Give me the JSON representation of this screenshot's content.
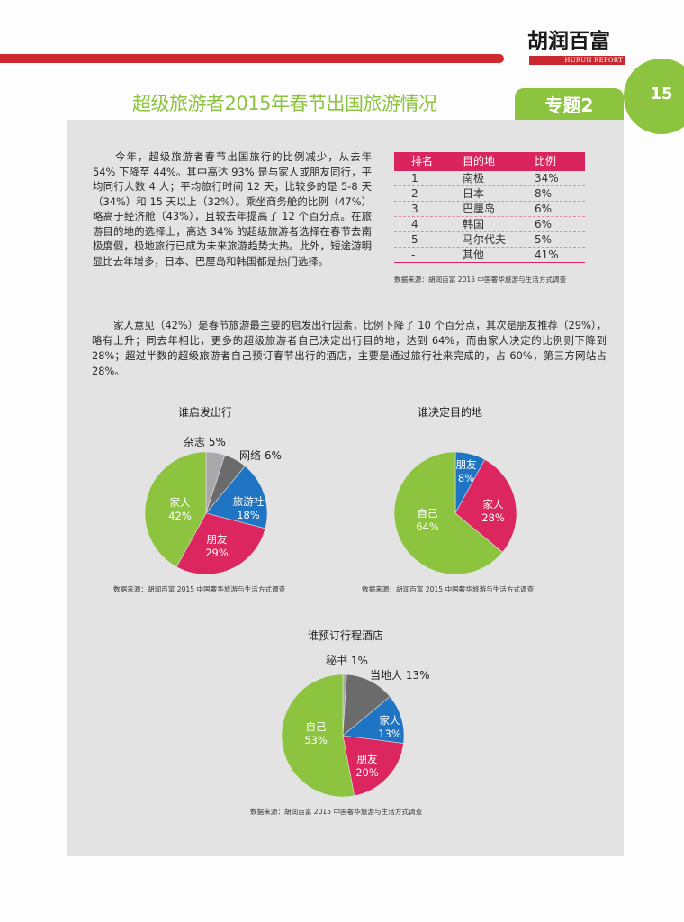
{
  "header": {
    "logo_cn": "胡润百富",
    "logo_en": "HURUN REPORT",
    "page_number": "15",
    "title": "超级旅游者2015年春节出国旅游情况",
    "topic_tab": "专题2"
  },
  "colors": {
    "brand_red": "#cc2a2e",
    "accent_green": "#8cc43f",
    "table_pink": "#d9245e",
    "panel_gray": "#e3e3e4",
    "pie_green": "#8cc43f",
    "pie_pink": "#db2660",
    "pie_blue": "#1f75c4",
    "pie_dark_gray": "#6b6b6b",
    "pie_light_gray": "#a9a9ab"
  },
  "intro_paragraph": "今年，超级旅游者春节出国旅行的比例减少，从去年 54% 下降至 44%。其中高达 93% 是与家人或朋友同行，平均同行人数 4 人；平均旅行时间 12 天，比较多的是 5-8 天（34%）和 15 天以上（32%）。乘坐商务舱的比例（47%）略高于经济舱（43%），且较去年提高了 12 个百分点。在旅游目的地的选择上，高达 34% 的超级旅游者选择在春节去南极度假，极地旅行已成为未来旅游趋势大热。此外，短途游明显比去年增多，日本、巴厘岛和韩国都是热门选择。",
  "second_paragraph": "家人意见（42%）是春节旅游最主要的启发出行因素，比例下降了 10 个百分点，其次是朋友推荐（29%），略有上升；同去年相比，更多的超级旅游者自己决定出行目的地，达到 64%，而由家人决定的比例则下降到 28%；超过半数的超级旅游者自己预订春节出行的酒店，主要是通过旅行社来完成的，占 60%，第三方网站占 28%。",
  "destination_table": {
    "headers": [
      "排名",
      "目的地",
      "比例"
    ],
    "rows": [
      {
        "rank": "1",
        "destination": "南极",
        "share": "34%"
      },
      {
        "rank": "2",
        "destination": "日本",
        "share": "8%"
      },
      {
        "rank": "3",
        "destination": "巴厘岛",
        "share": "6%"
      },
      {
        "rank": "4",
        "destination": "韩国",
        "share": "6%"
      },
      {
        "rank": "5",
        "destination": "马尔代夫",
        "share": "5%"
      },
      {
        "rank": "-",
        "destination": "其他",
        "share": "41%"
      }
    ],
    "source": "数据来源：胡润百富 2015 中国奢华旅游与生活方式调查"
  },
  "chart_data": [
    {
      "type": "pie",
      "title": "谁启发出行",
      "categories": [
        "杂志",
        "网络",
        "旅游社",
        "朋友",
        "家人"
      ],
      "values": [
        5,
        6,
        18,
        29,
        42
      ],
      "colors": [
        "#a9a9ab",
        "#6b6b6b",
        "#1f75c4",
        "#db2660",
        "#8cc43f"
      ],
      "labels": {
        "杂志": "杂志 5%",
        "网络": "网络 6%",
        "旅游社": [
          "旅游社",
          "18%"
        ],
        "朋友": [
          "朋友",
          "29%"
        ],
        "家人": [
          "家人",
          "42%"
        ]
      },
      "start_angle": "12 o'clock, clockwise",
      "source": "数据来源：胡润百富 2015 中国奢华旅游与生活方式调查"
    },
    {
      "type": "pie",
      "title": "谁决定目的地",
      "categories": [
        "朋友",
        "家人",
        "自己"
      ],
      "values": [
        8,
        28,
        64
      ],
      "colors": [
        "#1f75c4",
        "#db2660",
        "#8cc43f"
      ],
      "labels": {
        "朋友": [
          "朋友",
          "8%"
        ],
        "家人": [
          "家人",
          "28%"
        ],
        "自己": [
          "自己",
          "64%"
        ]
      },
      "start_angle": "12 o'clock, clockwise",
      "source": "数据来源：胡润百富 2015 中国奢华旅游与生活方式调查"
    },
    {
      "type": "pie",
      "title": "谁预订行程酒店",
      "categories": [
        "秘书",
        "当地人",
        "家人",
        "朋友",
        "自己"
      ],
      "values": [
        1,
        13,
        13,
        20,
        53
      ],
      "colors": [
        "#a9a9ab",
        "#6b6b6b",
        "#1f75c4",
        "#db2660",
        "#8cc43f"
      ],
      "labels": {
        "秘书": "秘书 1%",
        "当地人": "当地人 13%",
        "家人": [
          "家人",
          "13%"
        ],
        "朋友": [
          "朋友",
          "20%"
        ],
        "自己": [
          "自己",
          "53%"
        ]
      },
      "start_angle": "12 o'clock, clockwise",
      "source": "数据来源：胡润百富 2015 中国奢华旅游与生活方式调查"
    }
  ],
  "charts_text": {
    "c1": {
      "title": "谁启发出行",
      "magazine": "杂志 5%",
      "web": "网络 6%",
      "agency_name": "旅游社",
      "agency_pct": "18%",
      "friend_name": "朋友",
      "friend_pct": "29%",
      "family_name": "家人",
      "family_pct": "42%"
    },
    "c2": {
      "title": "谁决定目的地",
      "friend_name": "朋友",
      "friend_pct": "8%",
      "family_name": "家人",
      "family_pct": "28%",
      "self_name": "自己",
      "self_pct": "64%"
    },
    "c3": {
      "title": "谁预订行程酒店",
      "secretary": "秘书 1%",
      "local": "当地人 13%",
      "family_name": "家人",
      "family_pct": "13%",
      "friend_name": "朋友",
      "friend_pct": "20%",
      "self_name": "自己",
      "self_pct": "53%"
    },
    "source": "数据来源：胡润百富 2015 中国奢华旅游与生活方式调查"
  }
}
